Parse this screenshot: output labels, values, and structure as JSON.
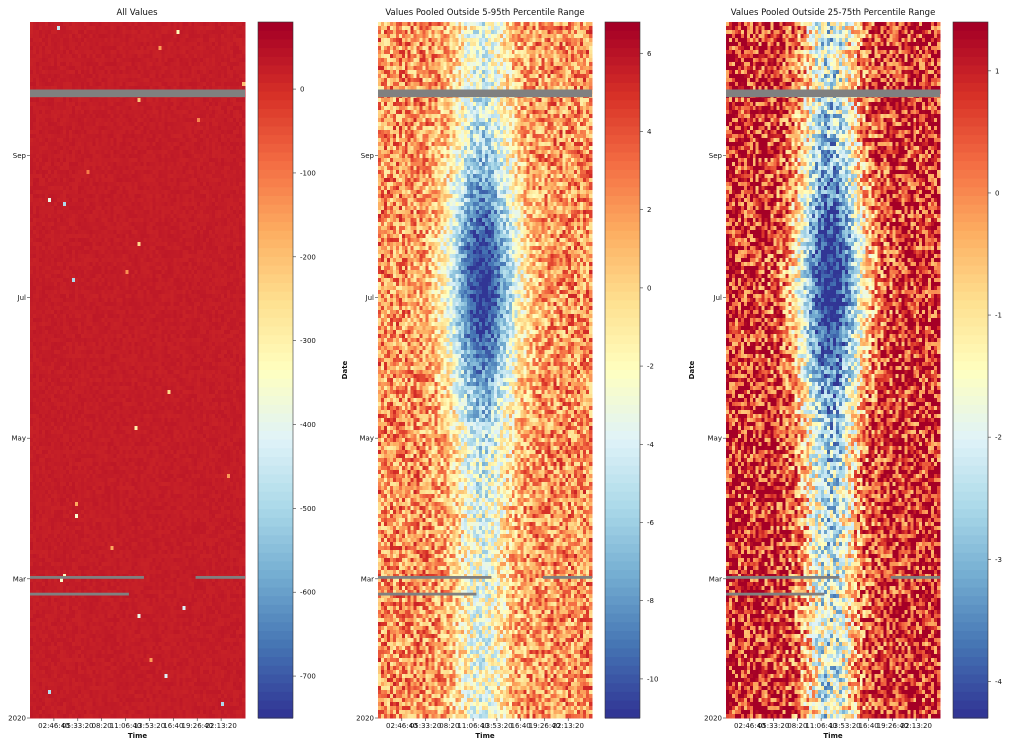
{
  "figure": {
    "x_axis_label": "Time",
    "y_axis_label": "Date"
  },
  "chart_data": [
    {
      "type": "heatmap",
      "title": "All Values",
      "xlabel": "Time",
      "ylabel": "Date",
      "x_ticks": [
        "02:46:40",
        "05:33:20",
        "08:20",
        "11:06:40",
        "13:53:20",
        "16:40",
        "19:26:40",
        "22:13:20"
      ],
      "y_ticks": [
        "2020",
        "Mar",
        "May",
        "Jul",
        "Sep"
      ],
      "colorbar": {
        "colormap": "RdYlBu_r",
        "min": -750,
        "max": 80,
        "ticks": [
          0,
          -100,
          -200,
          -300,
          -400,
          -500,
          -600,
          -700
        ]
      },
      "pattern": "uniform",
      "typical_value": 30,
      "missing_color": "#808080"
    },
    {
      "type": "heatmap",
      "title": "Values Pooled Outside 5-95th Percentile Range",
      "xlabel": "Time",
      "ylabel": "Date",
      "x_ticks": [
        "02:46:40",
        "05:33:20",
        "08:20",
        "11:06:40",
        "13:53:20",
        "16:40",
        "19:26:40",
        "22:13:20"
      ],
      "y_ticks": [
        "2020",
        "Mar",
        "May",
        "Jul",
        "Sep"
      ],
      "colorbar": {
        "colormap": "RdYlBu_r",
        "min": -11,
        "max": 6.8,
        "ticks": [
          6,
          4,
          2,
          0,
          -2,
          -4,
          -6,
          -8,
          -10
        ]
      },
      "pattern": "daytime_low",
      "missing_color": "#808080"
    },
    {
      "type": "heatmap",
      "title": "Values Pooled Outside 25-75th Percentile Range",
      "xlabel": "Time",
      "ylabel": "Date",
      "x_ticks": [
        "02:46:40",
        "05:33:20",
        "08:20",
        "11:06:40",
        "13:53:20",
        "16:40",
        "19:26:40",
        "22:13:20"
      ],
      "y_ticks": [
        "2020",
        "Mar",
        "May",
        "Jul",
        "Sep"
      ],
      "colorbar": {
        "colormap": "RdYlBu_r",
        "min": -4.3,
        "max": 1.4,
        "ticks": [
          1,
          0,
          -1,
          -2,
          -3,
          -4
        ]
      },
      "pattern": "daytime_low_strong",
      "missing_color": "#808080"
    }
  ],
  "colors": {
    "colormap_stops": [
      "#313695",
      "#4575b4",
      "#74add1",
      "#abd9e9",
      "#e0f3f8",
      "#ffffbf",
      "#fee090",
      "#fdae61",
      "#f46d43",
      "#d73027",
      "#a50026"
    ],
    "missing": "#808080"
  }
}
